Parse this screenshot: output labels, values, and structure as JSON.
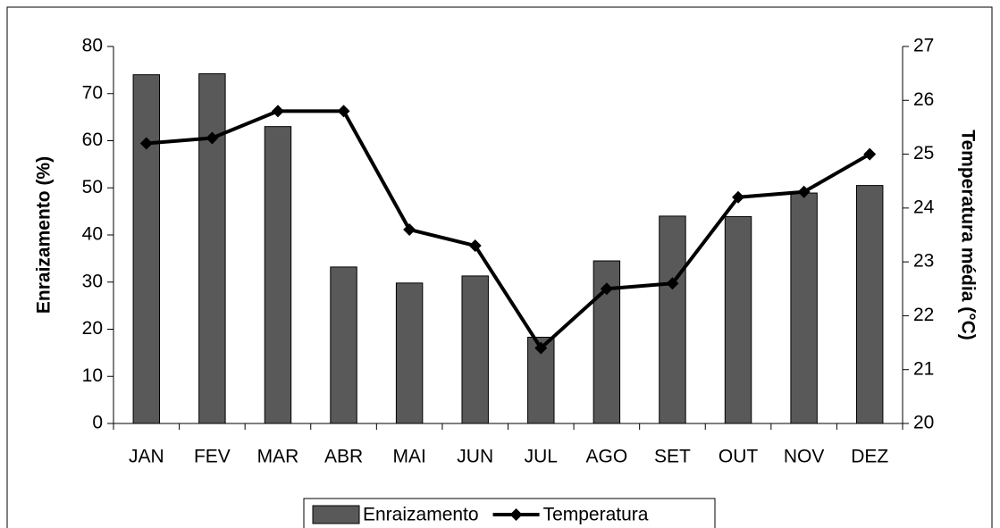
{
  "chart_data": {
    "type": "bar-line",
    "categories": [
      "JAN",
      "FEV",
      "MAR",
      "ABR",
      "MAI",
      "JUN",
      "JUL",
      "AGO",
      "SET",
      "OUT",
      "NOV",
      "DEZ"
    ],
    "series": [
      {
        "name": "Enraizamento",
        "type": "bar",
        "color": "#595959",
        "values": [
          74,
          74.2,
          63,
          33.2,
          29.8,
          31.3,
          18.3,
          34.5,
          44,
          43.9,
          48.9,
          50.5
        ]
      },
      {
        "name": "Temperatura",
        "type": "line",
        "axis": "y2",
        "color": "#000000",
        "values": [
          25.2,
          25.3,
          25.8,
          25.8,
          23.6,
          23.3,
          21.4,
          22.5,
          22.6,
          24.2,
          24.3,
          25.0
        ]
      }
    ],
    "ylabel": "Enraizamento (%)",
    "y2label": "Temperatura média (°C)",
    "ylim": [
      0,
      80
    ],
    "yticks": [
      0,
      10,
      20,
      30,
      40,
      50,
      60,
      70,
      80
    ],
    "y2lim": [
      20,
      27
    ],
    "y2ticks": [
      20,
      21,
      22,
      23,
      24,
      25,
      26,
      27
    ],
    "legend": "bottom"
  }
}
